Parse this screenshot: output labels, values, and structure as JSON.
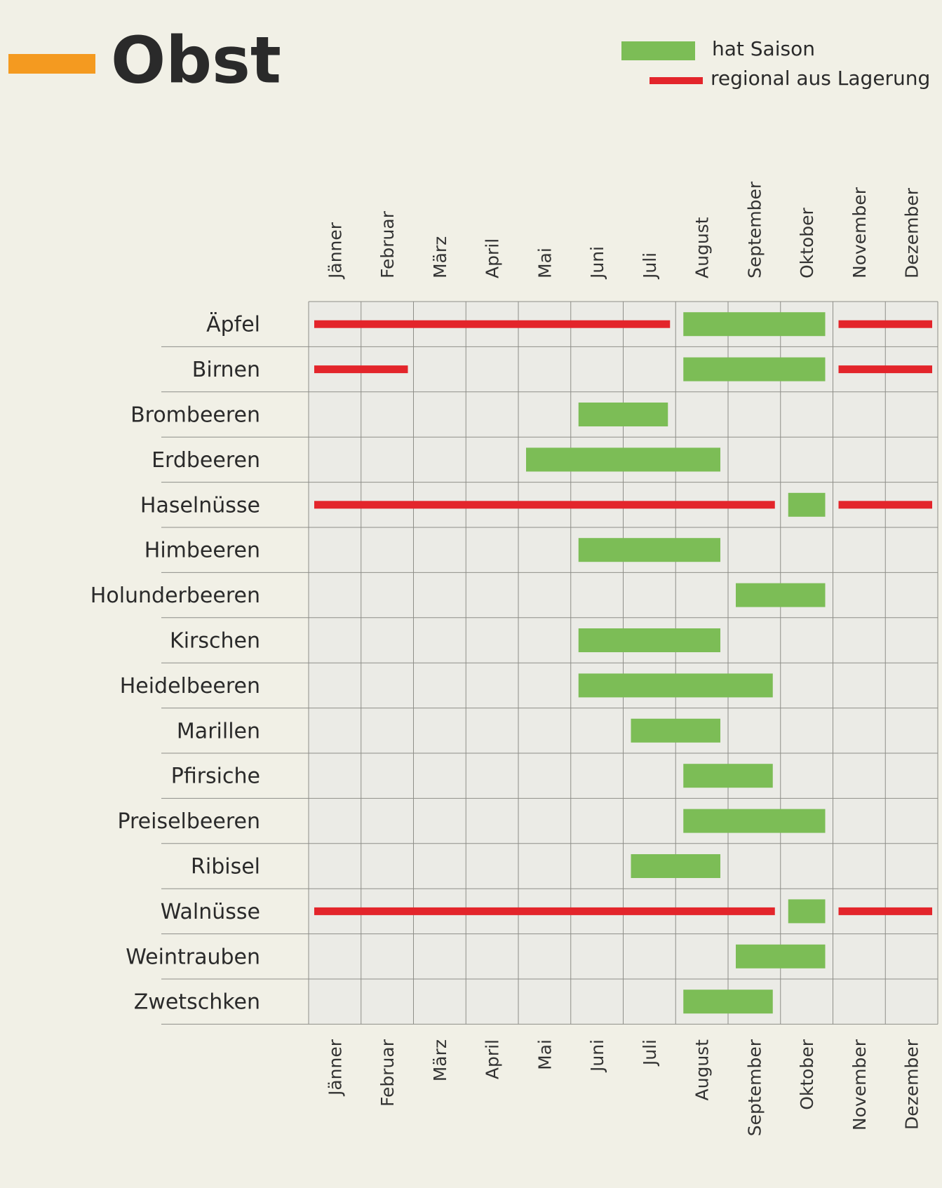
{
  "chart_data": {
    "type": "season-calendar",
    "title": "Obst",
    "categories": [
      "Jänner",
      "Februar",
      "März",
      "April",
      "Mai",
      "Juni",
      "Juli",
      "August",
      "September",
      "Oktober",
      "November",
      "Dezember"
    ],
    "xlim": [
      0,
      12
    ],
    "series": [
      {
        "name": "hat Saison",
        "color": "#7cbd56"
      },
      {
        "name": "regional aus Lagerung",
        "color": "#e3252b"
      }
    ],
    "rows": [
      {
        "label": "Äpfel",
        "season": [
          [
            8,
            10
          ]
        ],
        "storage": [
          [
            1,
            7
          ],
          [
            11,
            12
          ]
        ]
      },
      {
        "label": "Birnen",
        "season": [
          [
            8,
            10
          ]
        ],
        "storage": [
          [
            1,
            2
          ],
          [
            11,
            12
          ]
        ]
      },
      {
        "label": "Brombeeren",
        "season": [
          [
            6,
            7
          ]
        ],
        "storage": []
      },
      {
        "label": "Erdbeeren",
        "season": [
          [
            5,
            8
          ]
        ],
        "storage": []
      },
      {
        "label": "Haselnüsse",
        "season": [
          [
            10,
            10
          ]
        ],
        "storage": [
          [
            1,
            9
          ],
          [
            11,
            12
          ]
        ]
      },
      {
        "label": "Himbeeren",
        "season": [
          [
            6,
            8
          ]
        ],
        "storage": []
      },
      {
        "label": "Holunderbeeren",
        "season": [
          [
            9,
            10
          ]
        ],
        "storage": []
      },
      {
        "label": "Kirschen",
        "season": [
          [
            6,
            8
          ]
        ],
        "storage": []
      },
      {
        "label": "Heidelbeeren",
        "season": [
          [
            6,
            9
          ]
        ],
        "storage": []
      },
      {
        "label": "Marillen",
        "season": [
          [
            7,
            8
          ]
        ],
        "storage": []
      },
      {
        "label": "Pfirsiche",
        "season": [
          [
            8,
            9
          ]
        ],
        "storage": []
      },
      {
        "label": "Preiselbeeren",
        "season": [
          [
            8,
            10
          ]
        ],
        "storage": []
      },
      {
        "label": "Ribisel",
        "season": [
          [
            7,
            8
          ]
        ],
        "storage": []
      },
      {
        "label": "Walnüsse",
        "season": [
          [
            10,
            10
          ]
        ],
        "storage": [
          [
            1,
            9
          ],
          [
            11,
            12
          ]
        ]
      },
      {
        "label": "Weintrauben",
        "season": [
          [
            9,
            10
          ]
        ],
        "storage": []
      },
      {
        "label": "Zwetschken",
        "season": [
          [
            8,
            9
          ]
        ],
        "storage": []
      }
    ]
  }
}
